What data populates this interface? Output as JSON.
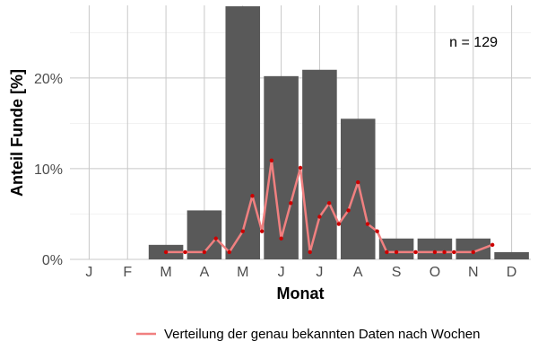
{
  "chart_data": {
    "type": "bar",
    "xlabel": "Monat",
    "ylabel": "Anteil Funde [%]",
    "categories": [
      "J",
      "F",
      "M",
      "A",
      "M",
      "J",
      "J",
      "A",
      "S",
      "O",
      "N",
      "D"
    ],
    "values": [
      0,
      0,
      1.6,
      5.4,
      27.9,
      20.2,
      20.9,
      15.5,
      2.3,
      2.3,
      2.3,
      0.8
    ],
    "ylim": [
      0,
      28
    ],
    "yticks": [
      0,
      10,
      20
    ],
    "ytick_labels": [
      "0%",
      "10%",
      "20%"
    ],
    "grid": true,
    "bar_color": "#595959",
    "annotation": "n = 129",
    "overlay_line": {
      "name": "Verteilung der genau bekannten Daten nach Wochen",
      "color": "#f08080",
      "point_color": "#cc0000",
      "x": [
        3.0,
        3.5,
        4.0,
        4.3,
        4.65,
        5.0,
        5.25,
        5.5,
        5.75,
        6.0,
        6.25,
        6.5,
        6.75,
        7.0,
        7.25,
        7.5,
        7.75,
        8.0,
        8.25,
        8.5,
        8.75,
        9.0,
        9.5,
        10.0,
        10.25,
        10.5,
        11.0,
        11.5
      ],
      "y": [
        0.8,
        0.8,
        0.8,
        2.3,
        0.8,
        3.1,
        7.0,
        3.1,
        10.9,
        2.3,
        6.2,
        10.1,
        0.8,
        4.7,
        6.2,
        3.9,
        5.4,
        8.5,
        3.9,
        3.1,
        0.8,
        0.8,
        0.8,
        0.8,
        0.8,
        0.8,
        0.8,
        1.6
      ]
    },
    "legend": {
      "position": "bottom"
    }
  }
}
